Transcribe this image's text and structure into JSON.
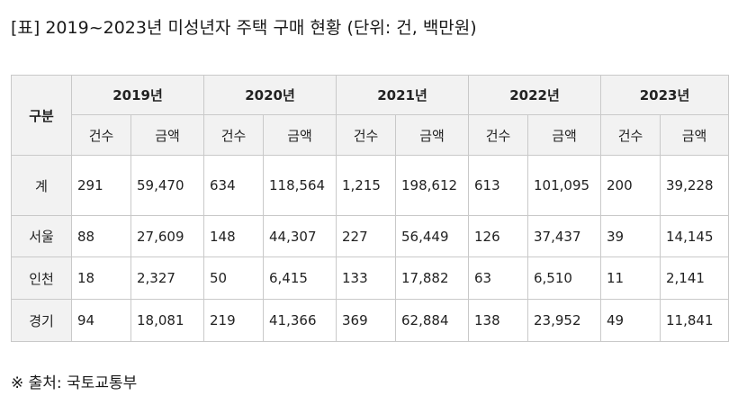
{
  "title": "[표] 2019~2023년 미성년자 주택 구매 현황 (단위: 건, 백만원)",
  "table": {
    "corner_label": "구분",
    "years": [
      "2019년",
      "2020년",
      "2021년",
      "2022년",
      "2023년"
    ],
    "sub_headers": {
      "count": "건수",
      "amount": "금액"
    },
    "rows": [
      {
        "label": "계",
        "cells": [
          "291",
          "59,470",
          "634",
          "118,564",
          "1,215",
          "198,612",
          "613",
          "101,095",
          "200",
          "39,228"
        ]
      },
      {
        "label": "서울",
        "cells": [
          "88",
          "27,609",
          "148",
          "44,307",
          "227",
          "56,449",
          "126",
          "37,437",
          "39",
          "14,145"
        ]
      },
      {
        "label": "인천",
        "cells": [
          "18",
          "2,327",
          "50",
          "6,415",
          "133",
          "17,882",
          "63",
          "6,510",
          "11",
          "2,141"
        ]
      },
      {
        "label": "경기",
        "cells": [
          "94",
          "18,081",
          "219",
          "41,366",
          "369",
          "62,884",
          "138",
          "23,952",
          "49",
          "11,841"
        ]
      }
    ]
  },
  "source": "※ 출처: 국토교통부"
}
